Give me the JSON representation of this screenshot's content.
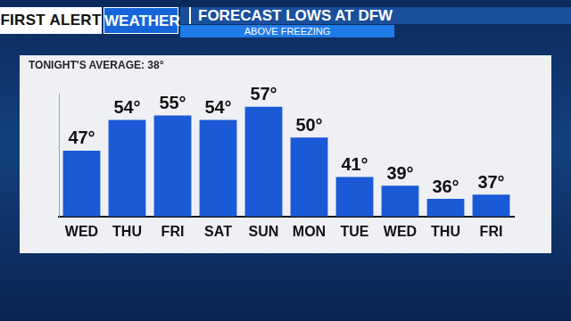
{
  "header": {
    "brand": "FIRST ALERT",
    "tag": "WEATHER"
  },
  "chart_data": {
    "type": "bar",
    "title": "FORECAST LOWS AT DFW",
    "subtitle": "ABOVE FREEZING",
    "annotations": [
      "TONIGHT'S AVERAGE: 38°"
    ],
    "categories": [
      "WED",
      "THU",
      "FRI",
      "SAT",
      "SUN",
      "MON",
      "TUE",
      "WED",
      "THU",
      "FRI"
    ],
    "values": [
      47,
      54,
      55,
      54,
      57,
      50,
      41,
      39,
      36,
      37
    ],
    "value_labels": [
      "47°",
      "54°",
      "55°",
      "54°",
      "57°",
      "50°",
      "41°",
      "39°",
      "36°",
      "37°"
    ],
    "color": "#1a5ad6",
    "ylim": [
      32,
      60
    ],
    "grid": false,
    "data_labels": true,
    "tick_labels": "x"
  }
}
